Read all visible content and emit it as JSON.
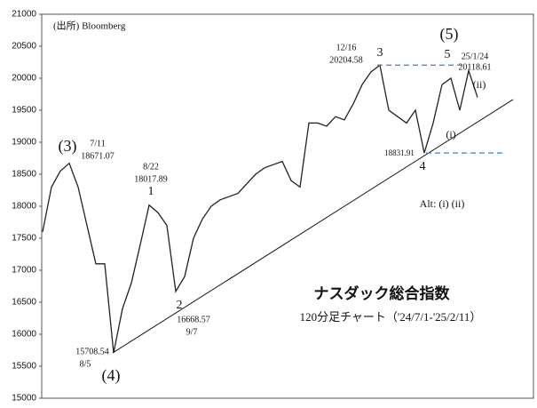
{
  "chart_data": {
    "type": "line",
    "title": "ナスダック総合指数",
    "subtitle": "120分足チャート（'24/7/1-'25/2/11）",
    "series": [
      {
        "name": "Nasdaq",
        "color": "#222222",
        "values": [
          17600,
          18300,
          18550,
          18671.07,
          18300,
          17700,
          17100,
          17100,
          15708.54,
          16400,
          16800,
          17400,
          18017.89,
          17900,
          17700,
          16668.57,
          16900,
          17500,
          17800,
          18000,
          18100,
          18150,
          18200,
          18350,
          18500,
          18600,
          18650,
          18700,
          18400,
          18300,
          19300,
          19300,
          19250,
          19400,
          19350,
          19600,
          19900,
          20100,
          20204.58,
          19500,
          19400,
          19300,
          19500,
          18831.91,
          19300,
          19900,
          20000,
          19500,
          20118.61,
          19700
        ]
      }
    ],
    "ylim": [
      15000,
      21000
    ],
    "yticks": [
      15000,
      15500,
      16000,
      16500,
      17000,
      17500,
      18000,
      18500,
      19000,
      19500,
      20000,
      20500,
      21000
    ],
    "levels": [
      20204.58,
      18831.91
    ],
    "level_color": "#4a7ebb",
    "trendline": [
      15708.54,
      19667
    ],
    "annotations": [
      "(出所) Bloomberg",
      "(3)",
      "7/11",
      "18671.07",
      "8/22",
      "18017.89",
      "1",
      "2",
      "16668.57",
      "9/7",
      "15708.54",
      "8/5",
      "(4)",
      "12/16",
      "20204.58",
      "3",
      "(5)",
      "5",
      "25/1/24",
      "20118.61",
      "(ii)",
      "(i)",
      "18831.91",
      "4",
      "Alt: (i)  (ii)"
    ]
  }
}
